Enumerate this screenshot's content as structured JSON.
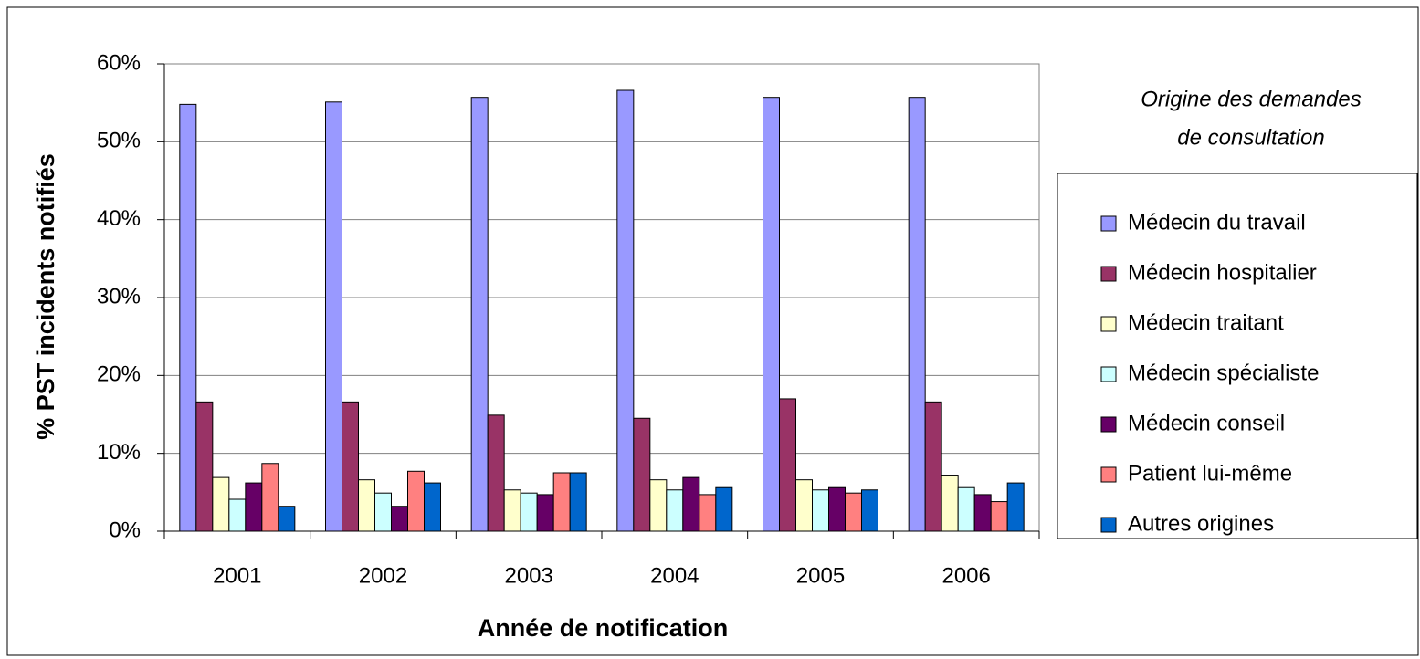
{
  "chart_data": {
    "type": "bar",
    "y_label": "% PST incidents notifiés",
    "x_label": "Année de notification",
    "legend_title": [
      "Origine des demandes",
      "de consultation"
    ],
    "legend": "right",
    "grid": true,
    "categories": [
      "2001",
      "2002",
      "2003",
      "2004",
      "2005",
      "2006"
    ],
    "ylim": [
      0,
      60
    ],
    "yticks": [
      {
        "value": 0,
        "label": "0%"
      },
      {
        "value": 10,
        "label": "10%"
      },
      {
        "value": 20,
        "label": "20%"
      },
      {
        "value": 30,
        "label": "30%"
      },
      {
        "value": 40,
        "label": "40%"
      },
      {
        "value": 50,
        "label": "50%"
      },
      {
        "value": 60,
        "label": "60%"
      }
    ],
    "series": [
      {
        "name": "Médecin du travail",
        "color": "#9999ff",
        "values": [
          54.8,
          55.1,
          55.7,
          56.6,
          55.7,
          55.7
        ]
      },
      {
        "name": "Médecin hospitalier",
        "color": "#993366",
        "values": [
          16.6,
          16.6,
          14.9,
          14.5,
          17.0,
          16.6
        ]
      },
      {
        "name": "Médecin traitant",
        "color": "#ffffcc",
        "values": [
          6.9,
          6.6,
          5.3,
          6.6,
          6.6,
          7.2
        ]
      },
      {
        "name": "Médecin spécialiste",
        "color": "#ccffff",
        "values": [
          4.1,
          4.9,
          4.9,
          5.3,
          5.3,
          5.6
        ]
      },
      {
        "name": "Médecin conseil",
        "color": "#660066",
        "values": [
          6.2,
          3.2,
          4.7,
          6.9,
          5.6,
          4.7
        ]
      },
      {
        "name": "Patient lui-même",
        "color": "#ff8080",
        "values": [
          8.7,
          7.7,
          7.5,
          4.7,
          4.9,
          3.8
        ]
      },
      {
        "name": "Autres origines",
        "color": "#0066cc",
        "values": [
          3.2,
          6.2,
          7.5,
          5.6,
          5.3,
          6.2
        ]
      }
    ]
  }
}
